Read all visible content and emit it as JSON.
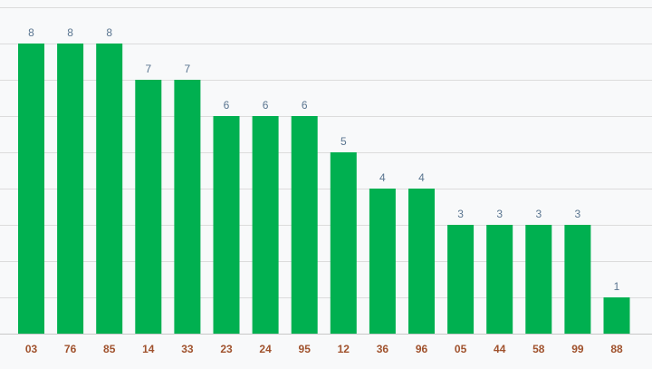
{
  "colors": {
    "bar": "#00b050",
    "value_label": "#5a7590",
    "category_label": "#a0522d",
    "grid": "#dcdcdc",
    "background": "#f8f9fa"
  },
  "chart_data": {
    "type": "bar",
    "categories": [
      "03",
      "76",
      "85",
      "14",
      "33",
      "23",
      "24",
      "95",
      "12",
      "36",
      "96",
      "05",
      "44",
      "58",
      "99",
      "88"
    ],
    "values": [
      8,
      8,
      8,
      7,
      7,
      6,
      6,
      6,
      5,
      4,
      4,
      3,
      3,
      3,
      3,
      1
    ],
    "title": "",
    "xlabel": "",
    "ylabel": "",
    "ylim": [
      0,
      9
    ],
    "grid": true,
    "legend": "none",
    "data_labels": true
  }
}
